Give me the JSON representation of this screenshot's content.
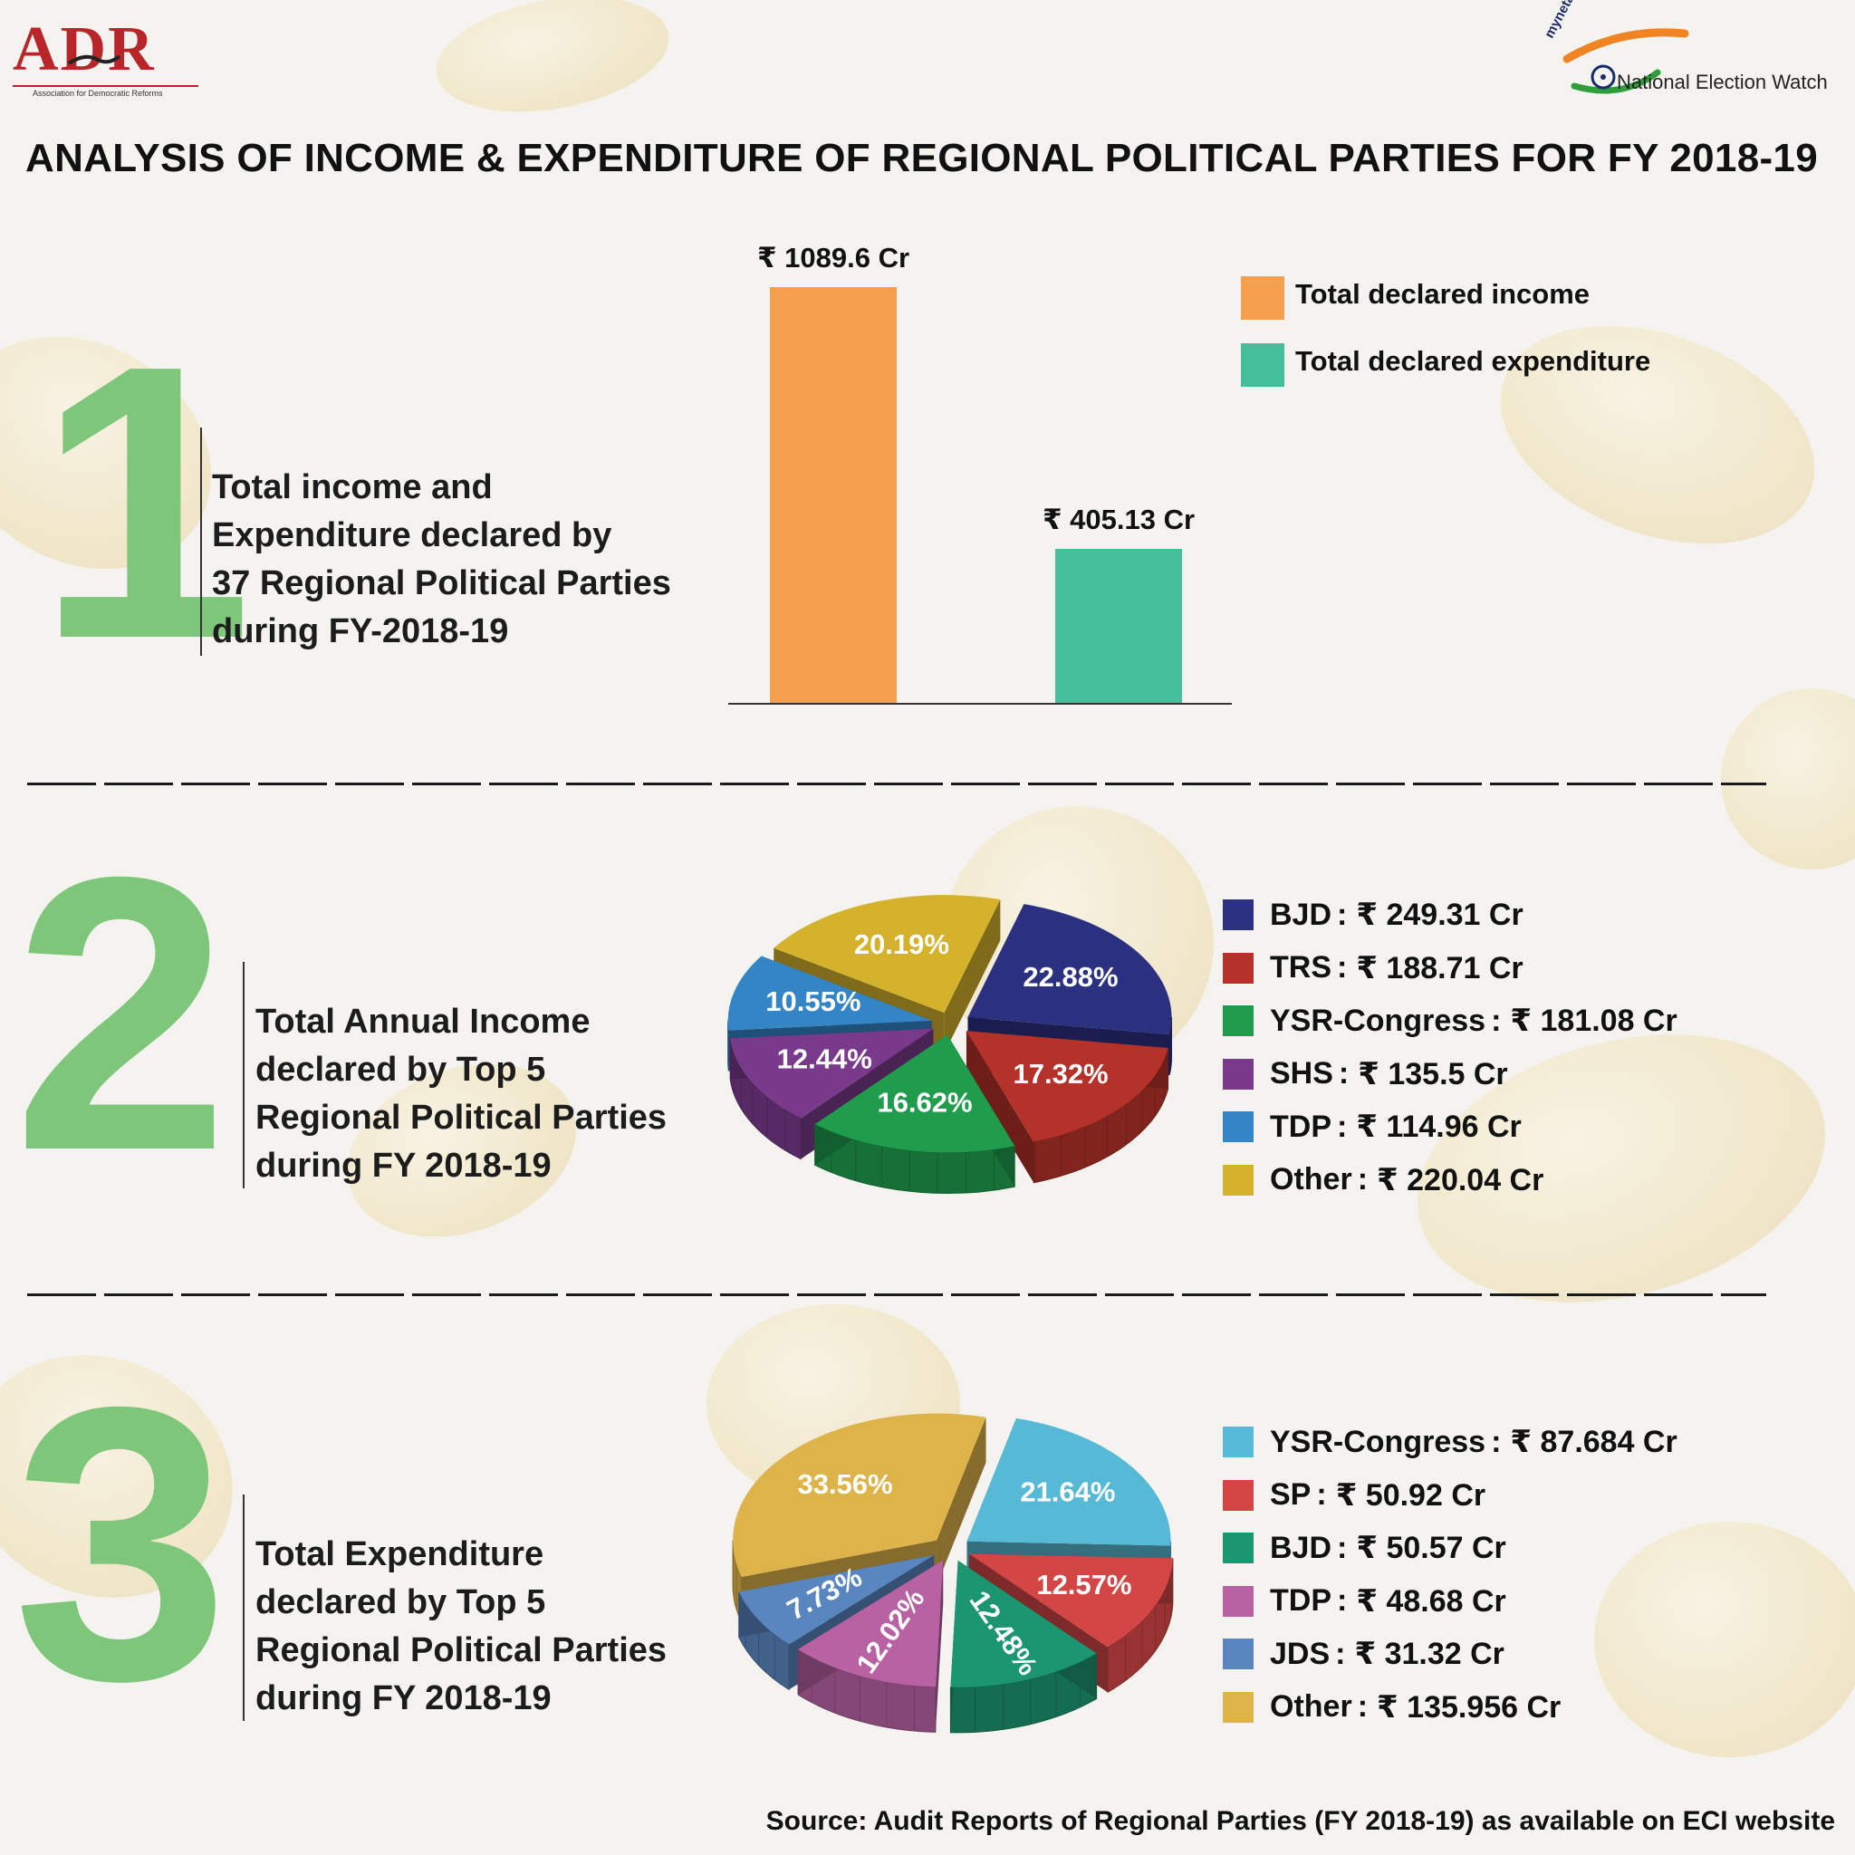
{
  "header": {
    "adr_logo_text": "ADR",
    "adr_logo_subtitle": "Association for Democratic Reforms",
    "myneta_logo_text": "myneta.info",
    "new_logo_text": "National Election Watch",
    "title": "ANALYSIS OF INCOME & EXPENDITURE OF REGIONAL POLITICAL PARTIES FOR FY 2018-19"
  },
  "sections": [
    {
      "number": "1",
      "text_lines": [
        "Total income and",
        "Expenditure declared by",
        "37 Regional Political Parties",
        "during FY-2018-19"
      ]
    },
    {
      "number": "2",
      "text_lines": [
        "Total Annual Income",
        "declared by Top 5",
        "Regional Political Parties",
        "during FY 2018-19"
      ]
    },
    {
      "number": "3",
      "text_lines": [
        "Total Expenditure",
        "declared by Top 5",
        "Regional Political Parties",
        "during FY 2018-19"
      ]
    }
  ],
  "chart_data": [
    {
      "type": "bar",
      "categories": [
        "Total declared income",
        "Total declared expenditure"
      ],
      "values": [
        1089.6,
        405.13
      ],
      "value_labels": [
        "₹ 1089.6 Cr",
        "₹ 405.13 Cr"
      ],
      "colors": [
        "#f6a04d",
        "#44bf9b"
      ],
      "legend": [
        "Total declared income",
        "Total declared expenditure"
      ],
      "legend_position": "top-right"
    },
    {
      "type": "pie",
      "labels": [
        "BJD",
        "TRS",
        "YSR-Congress",
        "SHS",
        "TDP",
        "Other"
      ],
      "values": [
        249.31,
        188.71,
        181.08,
        135.5,
        114.96,
        220.04
      ],
      "value_labels": [
        "₹ 249.31 Cr",
        "₹ 188.71 Cr",
        "₹ 181.08 Cr",
        "₹ 135.5 Cr",
        "₹ 114.96 Cr",
        "₹ 220.04 Cr"
      ],
      "percentages": [
        "22.88%",
        "17.32%",
        "16.62%",
        "12.44%",
        "10.55%",
        "20.19%"
      ],
      "colors": [
        "#2b3180",
        "#b5322a",
        "#1f9c4c",
        "#7a3a8c",
        "#3385c6",
        "#d4b22c"
      ],
      "legend_position": "right"
    },
    {
      "type": "pie",
      "labels": [
        "YSR-Congress",
        "SP",
        "BJD",
        "TDP",
        "JDS",
        "Other"
      ],
      "values": [
        87.684,
        50.92,
        50.57,
        48.68,
        31.32,
        135.956
      ],
      "value_labels": [
        "₹ 87.684 Cr",
        "₹ 50.92 Cr",
        "₹ 50.57 Cr",
        "₹ 48.68 Cr",
        "₹ 31.32 Cr",
        "₹ 135.956 Cr"
      ],
      "percentages": [
        "21.64%",
        "12.57%",
        "12.48%",
        "12.02%",
        "7.73%",
        "33.56%"
      ],
      "colors": [
        "#56b9d6",
        "#d44646",
        "#1c9670",
        "#b862a4",
        "#5a86bf",
        "#ddb34a"
      ],
      "legend_position": "right"
    }
  ],
  "source": "Source:  Audit Reports of Regional Parties (FY 2018-19) as available on ECI website"
}
